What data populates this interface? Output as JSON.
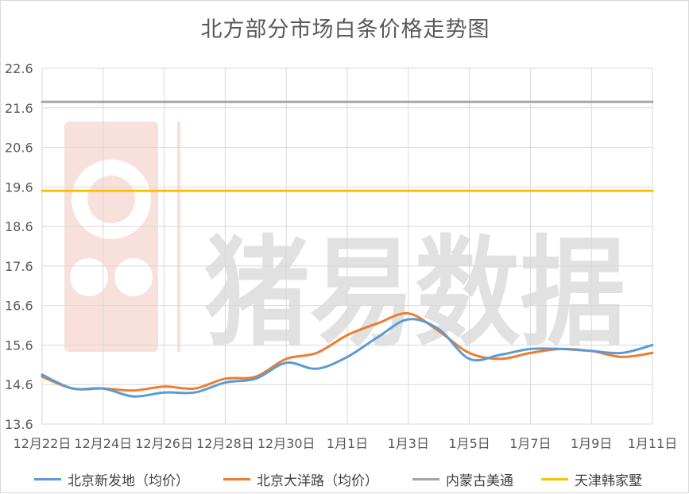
{
  "chart_data": {
    "type": "line",
    "title": "北方部分市场白条价格走势图",
    "xlabel": "",
    "ylabel": "",
    "ylim": [
      13.6,
      22.6
    ],
    "yticks": [
      "22.6",
      "21.6",
      "20.6",
      "19.6",
      "18.6",
      "17.6",
      "16.6",
      "15.6",
      "14.6",
      "13.6"
    ],
    "x": [
      "12月22日",
      "12月23日",
      "12月24日",
      "12月25日",
      "12月26日",
      "12月27日",
      "12月28日",
      "12月29日",
      "12月30日",
      "12月31日",
      "1月1日",
      "1月2日",
      "1月3日",
      "1月4日",
      "1月5日",
      "1月6日",
      "1月7日",
      "1月8日",
      "1月9日",
      "1月10日",
      "1月11日"
    ],
    "xtick_labels": [
      "12月22日",
      "12月24日",
      "12月26日",
      "12月28日",
      "12月30日",
      "1月1日",
      "1月3日",
      "1月5日",
      "1月7日",
      "1月9日",
      "1月11日"
    ],
    "series": [
      {
        "name": "北京新发地（均价）",
        "color": "#5b9bd5",
        "values": [
          14.85,
          14.5,
          14.5,
          14.3,
          14.4,
          14.4,
          14.65,
          14.75,
          15.15,
          15.0,
          15.3,
          15.8,
          16.25,
          16.0,
          15.25,
          15.35,
          15.5,
          15.5,
          15.45,
          15.4,
          15.6
        ]
      },
      {
        "name": "北京大洋路（均价）",
        "color": "#ed7d31",
        "values": [
          14.8,
          14.5,
          14.5,
          14.45,
          14.55,
          14.5,
          14.75,
          14.8,
          15.25,
          15.4,
          15.85,
          16.15,
          16.4,
          15.95,
          15.4,
          15.25,
          15.4,
          15.5,
          15.45,
          15.3,
          15.4
        ]
      },
      {
        "name": "内蒙古美通",
        "color": "#a5a5a5",
        "values": [
          21.75,
          21.75,
          21.75,
          21.75,
          21.75,
          21.75,
          21.75,
          21.75,
          21.75,
          21.75,
          21.75,
          21.75,
          21.75,
          21.75,
          21.75,
          21.75,
          21.75,
          21.75,
          21.75,
          21.75,
          21.75
        ]
      },
      {
        "name": "天津韩家墅",
        "color": "#ffc000",
        "values": [
          19.5,
          19.5,
          19.5,
          19.5,
          19.5,
          19.5,
          19.5,
          19.5,
          19.5,
          19.5,
          19.5,
          19.5,
          19.5,
          19.5,
          19.5,
          19.5,
          19.5,
          19.5,
          19.5,
          19.5,
          19.5
        ]
      }
    ],
    "grid": true,
    "legend_position": "bottom"
  },
  "watermark": {
    "text": "猪易数据",
    "logo": "pig-easy-logo"
  },
  "colors": {
    "grid": "#d9d9d9",
    "axis_text": "#595959",
    "watermark": "#d8d8d8",
    "logo": "#f4c7c3"
  }
}
